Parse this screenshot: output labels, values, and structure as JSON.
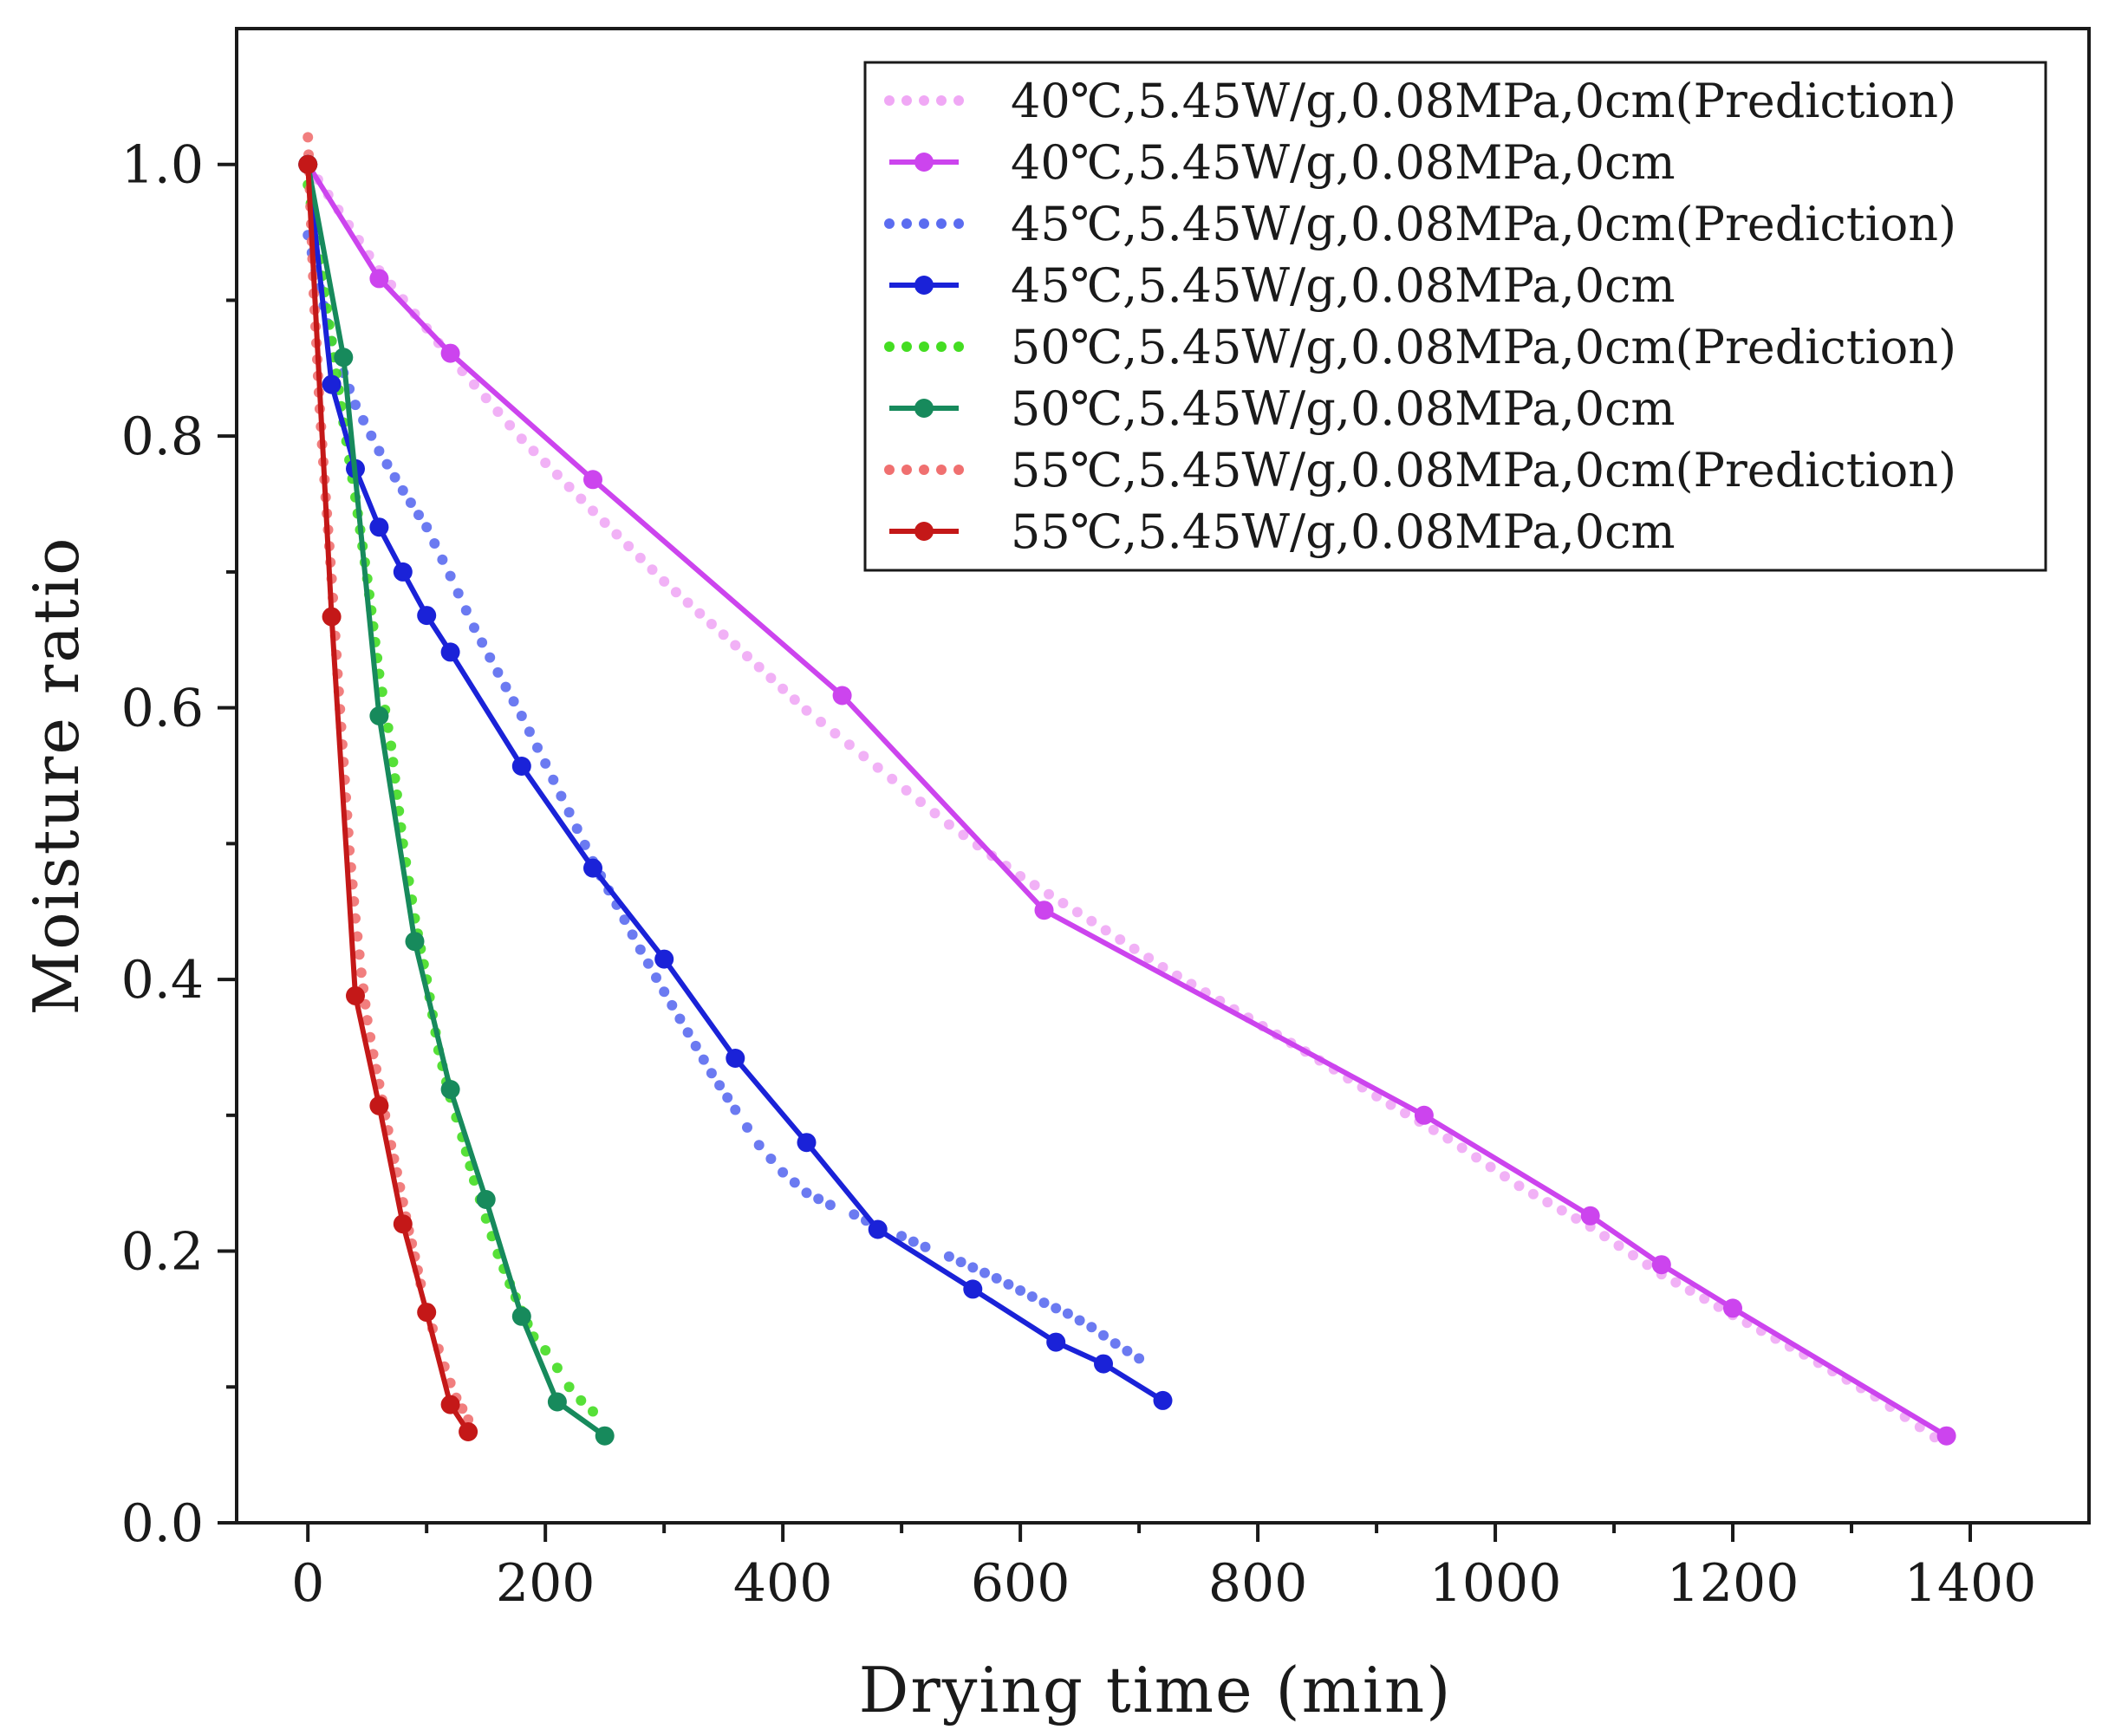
{
  "chart_data": {
    "type": "line",
    "title": "",
    "xlabel": "Drying time (min)",
    "ylabel": "Moisture ratio",
    "xlim": [
      -60,
      1500
    ],
    "ylim": [
      0.0,
      1.1
    ],
    "xticks": [
      0,
      200,
      400,
      600,
      800,
      1000,
      1200,
      1400
    ],
    "xtick_labels": [
      "0",
      "200",
      "400",
      "600",
      "800",
      "1000",
      "1200",
      "1400"
    ],
    "yticks": [
      0.0,
      0.2,
      0.4,
      0.6,
      0.8,
      1.0
    ],
    "ytick_labels": [
      "0.0",
      "0.2",
      "0.4",
      "0.6",
      "0.8",
      "1.0"
    ],
    "grid": false,
    "legend_position": "top-right",
    "series": [
      {
        "name": "40℃,5.45W/g,0.08MPa,0cm(Prediction)",
        "kind": "prediction",
        "color": "#f0a8f5",
        "x": [
          0,
          60,
          120,
          180,
          240,
          300,
          360,
          420,
          480,
          540,
          600,
          660,
          720,
          780,
          840,
          900,
          960,
          1020,
          1080,
          1140,
          1200,
          1260,
          1320,
          1370
        ],
        "y": [
          1.0,
          0.922,
          0.858,
          0.798,
          0.745,
          0.693,
          0.646,
          0.598,
          0.556,
          0.514,
          0.476,
          0.443,
          0.409,
          0.378,
          0.347,
          0.314,
          0.283,
          0.248,
          0.218,
          0.183,
          0.153,
          0.124,
          0.093,
          0.063
        ]
      },
      {
        "name": "40℃,5.45W/g,0.08MPa,0cm",
        "kind": "measured",
        "color": "#cc44ee",
        "x": [
          0,
          60,
          120,
          240,
          450,
          620,
          940,
          1080,
          1140,
          1200,
          1380
        ],
        "y": [
          1.0,
          0.916,
          0.861,
          0.768,
          0.609,
          0.451,
          0.3,
          0.226,
          0.19,
          0.158,
          0.064
        ]
      },
      {
        "name": "45℃,5.45W/g,0.08MPa,0cm(Prediction)",
        "kind": "prediction",
        "color": "#5b6cf0",
        "x": [
          0,
          20,
          40,
          60,
          80,
          100,
          120,
          140,
          160,
          180,
          200,
          220,
          240,
          260,
          280,
          300,
          320,
          340,
          360,
          380,
          400,
          420,
          440,
          460,
          480,
          500,
          520,
          540,
          560,
          580,
          600,
          620,
          640,
          660,
          680,
          700
        ],
        "y": [
          0.948,
          0.87,
          0.823,
          0.789,
          0.76,
          0.733,
          0.697,
          0.659,
          0.626,
          0.594,
          0.559,
          0.523,
          0.487,
          0.455,
          0.422,
          0.391,
          0.361,
          0.331,
          0.304,
          0.278,
          0.258,
          0.243,
          0.234,
          0.227,
          0.218,
          0.211,
          0.203,
          0.196,
          0.188,
          0.18,
          0.171,
          0.162,
          0.154,
          0.144,
          0.132,
          0.121
        ]
      },
      {
        "name": "45℃,5.45W/g,0.08MPa,0cm",
        "kind": "measured",
        "color": "#1a22d8",
        "x": [
          0,
          20,
          40,
          60,
          80,
          100,
          120,
          180,
          240,
          300,
          360,
          420,
          480,
          560,
          630,
          670,
          720
        ],
        "y": [
          1.0,
          0.838,
          0.776,
          0.733,
          0.7,
          0.668,
          0.641,
          0.557,
          0.482,
          0.415,
          0.342,
          0.28,
          0.216,
          0.172,
          0.133,
          0.117,
          0.09
        ]
      },
      {
        "name": "50℃,5.45W/g,0.08MPa,0cm(Prediction)",
        "kind": "prediction",
        "color": "#44dd22",
        "x": [
          0,
          10,
          20,
          30,
          40,
          50,
          60,
          70,
          80,
          90,
          100,
          110,
          120,
          130,
          140,
          150,
          160,
          170,
          180,
          190,
          200,
          210,
          220,
          230,
          240
        ],
        "y": [
          0.985,
          0.93,
          0.87,
          0.81,
          0.755,
          0.695,
          0.625,
          0.572,
          0.5,
          0.445,
          0.4,
          0.348,
          0.313,
          0.284,
          0.252,
          0.224,
          0.198,
          0.176,
          0.156,
          0.137,
          0.127,
          0.114,
          0.1,
          0.09,
          0.082
        ]
      },
      {
        "name": "50℃,5.45W/g,0.08MPa,0cm",
        "kind": "measured",
        "color": "#178a5c",
        "x": [
          0,
          30,
          60,
          90,
          120,
          150,
          180,
          210,
          250
        ],
        "y": [
          1.0,
          0.858,
          0.594,
          0.428,
          0.319,
          0.238,
          0.152,
          0.089,
          0.064
        ]
      },
      {
        "name": "55℃,5.45W/g,0.08MPa,0cm(Prediction)",
        "kind": "prediction",
        "color": "#f07070",
        "x": [
          0,
          5,
          10,
          15,
          20,
          25,
          30,
          35,
          40,
          45,
          50,
          55,
          60,
          65,
          70,
          75,
          80,
          85,
          90,
          95,
          100,
          105,
          110,
          115,
          120,
          125,
          130,
          135
        ],
        "y": [
          1.02,
          0.905,
          0.82,
          0.755,
          0.695,
          0.625,
          0.56,
          0.495,
          0.445,
          0.405,
          0.37,
          0.345,
          0.323,
          0.3,
          0.278,
          0.258,
          0.236,
          0.215,
          0.196,
          0.176,
          0.158,
          0.143,
          0.128,
          0.115,
          0.103,
          0.092,
          0.084,
          0.076
        ]
      },
      {
        "name": "55℃,5.45W/g,0.08MPa,0cm",
        "kind": "measured",
        "color": "#c41818",
        "x": [
          0,
          20,
          40,
          60,
          80,
          100,
          120,
          135
        ],
        "y": [
          1.0,
          0.667,
          0.388,
          0.307,
          0.22,
          0.155,
          0.087,
          0.067
        ]
      }
    ]
  }
}
